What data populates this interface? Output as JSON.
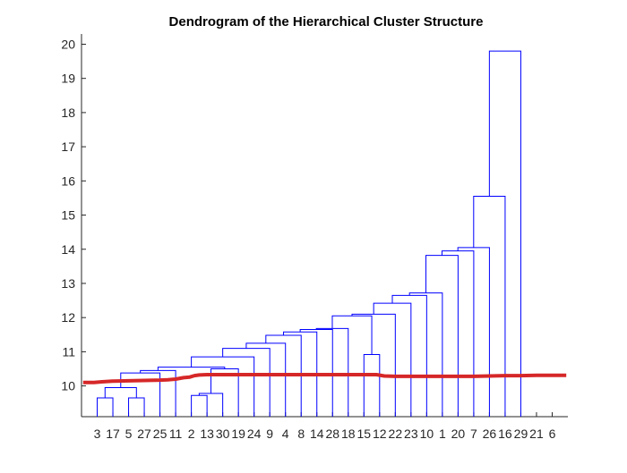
{
  "chart_data": {
    "type": "dendrogram",
    "title": "Dendrogram of the Hierarchical Cluster Structure",
    "xlabel": "",
    "ylabel": "",
    "ylim": [
      9.1,
      20.3
    ],
    "yticks": [
      10,
      11,
      12,
      13,
      14,
      15,
      16,
      17,
      18,
      19,
      20
    ],
    "x_tick_labels": [
      "3",
      "17",
      "5",
      "27",
      "25",
      "11",
      "2",
      "13",
      "30",
      "19",
      "24",
      "9",
      "4",
      "8",
      "14",
      "28",
      "18",
      "15",
      "12",
      "22",
      "23",
      "10",
      "1",
      "20",
      "7",
      "26",
      "16",
      "29",
      "21",
      "6"
    ],
    "grid": false,
    "link_color": "#0000ff",
    "cutoff_color": "#d62728",
    "merges": [
      {
        "left": 1,
        "right": 2,
        "height": 9.65
      },
      {
        "left": 3,
        "right": 4,
        "height": 9.65
      },
      {
        "left": "m1",
        "right": "m2",
        "height": 9.95
      },
      {
        "left": 7,
        "right": 8,
        "height": 9.72
      },
      {
        "left": "m4",
        "right": 9,
        "height": 9.78
      },
      {
        "left": "m3",
        "right": 5,
        "height": 10.38
      },
      {
        "left": "m6",
        "right": 6,
        "height": 10.45
      },
      {
        "left": "m5",
        "right": 10,
        "height": 10.5
      },
      {
        "left": "m7",
        "right": "m8",
        "height": 10.55
      },
      {
        "left": "m9",
        "right": 11,
        "height": 10.85
      },
      {
        "left": "m10",
        "right": 12,
        "height": 11.1
      },
      {
        "left": "m11",
        "right": 13,
        "height": 11.25
      },
      {
        "left": "m12",
        "right": 14,
        "height": 11.48
      },
      {
        "left": "m13",
        "right": 15,
        "height": 11.58
      },
      {
        "left": "m14",
        "right": 16,
        "height": 11.65
      },
      {
        "left": 18,
        "right": 19,
        "height": 10.92
      },
      {
        "left": "m15",
        "right": 17,
        "height": 11.68
      },
      {
        "left": "m17",
        "right": "m16",
        "height": 12.05
      },
      {
        "left": "m18",
        "right": 20,
        "height": 12.1
      },
      {
        "left": "m19",
        "right": 21,
        "height": 12.42
      },
      {
        "left": "m20",
        "right": 22,
        "height": 12.65
      },
      {
        "left": "m21",
        "right": 23,
        "height": 12.72
      },
      {
        "left": "m22",
        "right": 24,
        "height": 13.82
      },
      {
        "left": "m23",
        "right": 25,
        "height": 13.95
      },
      {
        "left": "m24",
        "right": 26,
        "height": 14.05
      },
      {
        "left": "m25",
        "right": 27,
        "height": 15.55
      },
      {
        "left": "m26",
        "right": 28,
        "height": 19.8
      }
    ],
    "leaf_bottom": 9.1,
    "cutoff_line": {
      "x": [
        0.1,
        0.8,
        1.3,
        2.0,
        3.0,
        4.0,
        5.0,
        5.5,
        6.0,
        6.5,
        6.9,
        7.2,
        7.5,
        8.0,
        9.0,
        10.0,
        11.0,
        12.0,
        13.0,
        14.0,
        15.0,
        16.0,
        17.0,
        18.0,
        18.8,
        19.3,
        20.0,
        21.0,
        22.0,
        23.0,
        24.0,
        25.0,
        26.0,
        27.0,
        28.0,
        29.0,
        30.0,
        30.9
      ],
      "y": [
        10.1,
        10.1,
        10.12,
        10.14,
        10.15,
        10.16,
        10.17,
        10.18,
        10.2,
        10.24,
        10.26,
        10.3,
        10.32,
        10.33,
        10.33,
        10.33,
        10.33,
        10.33,
        10.33,
        10.33,
        10.33,
        10.33,
        10.33,
        10.33,
        10.33,
        10.29,
        10.28,
        10.28,
        10.28,
        10.28,
        10.28,
        10.28,
        10.29,
        10.3,
        10.3,
        10.31,
        10.31,
        10.31
      ]
    }
  }
}
